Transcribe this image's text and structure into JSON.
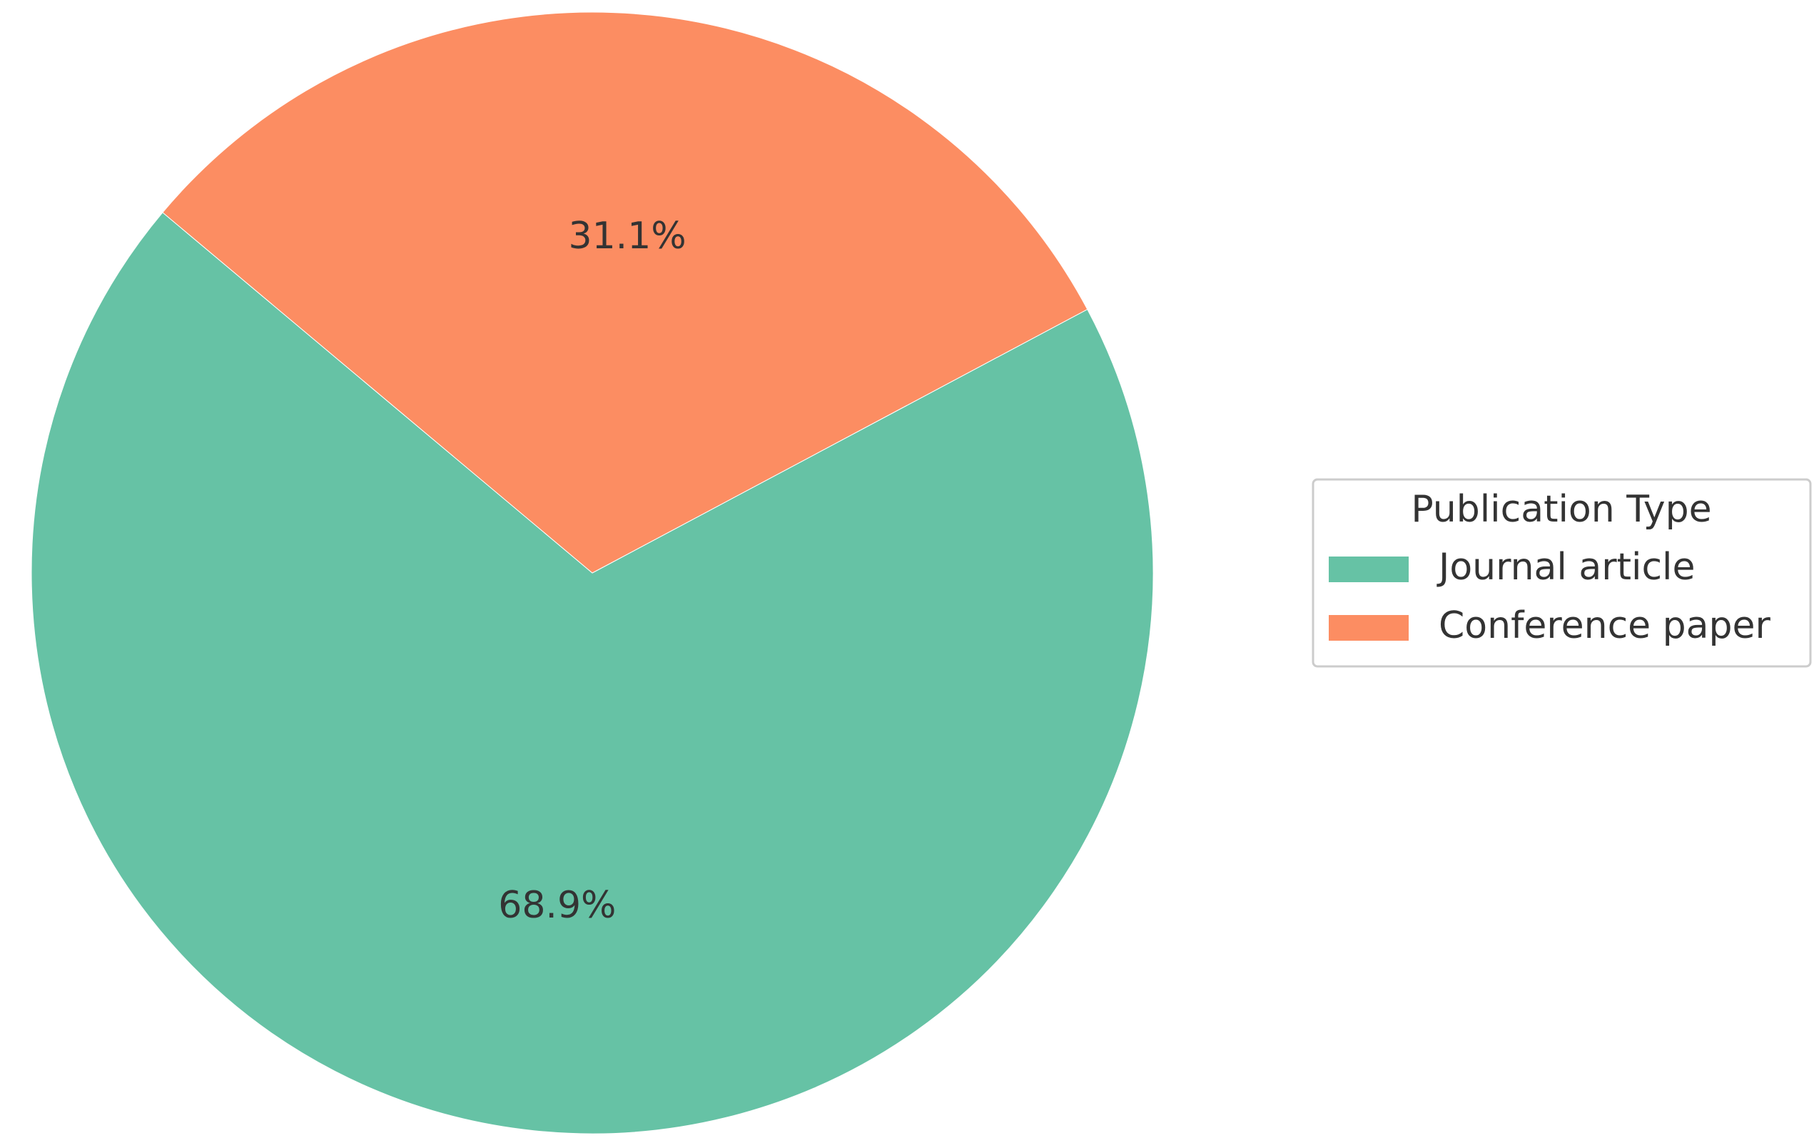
{
  "chart_data": {
    "type": "pie",
    "categories": [
      "Journal article",
      "Conference paper"
    ],
    "values": [
      68.9,
      31.1
    ],
    "value_labels": [
      "68.9%",
      "31.1%"
    ],
    "colors": [
      "#66c2a5",
      "#fc8d62"
    ],
    "start_angle": 140,
    "legend_title": "Publication Type",
    "legend_position": "right"
  }
}
